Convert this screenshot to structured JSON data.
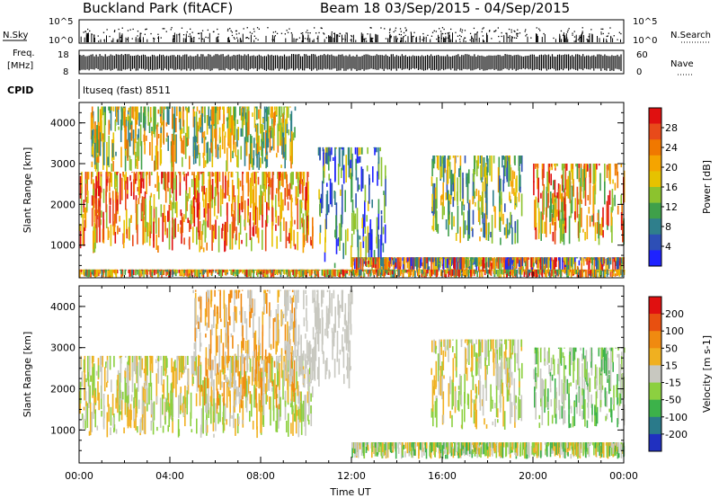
{
  "header": {
    "title_left": "Buckland Park (fitACF)",
    "title_right": "Beam 18  03/Sep/2015 - 04/Sep/2015"
  },
  "strips": {
    "nsky_label": "N.Sky",
    "nsearch_label": "N.Search",
    "freq_label": "Freq.",
    "freq_unit": "[MHz]",
    "nave_label": "Nave",
    "cpid_label": "CPID",
    "cpid_value": "ltuseq (fast) 8511",
    "nsky_ticks": [
      "10^5",
      "10^0"
    ],
    "nsearch_ticks": [
      "10^5",
      "10^0"
    ],
    "freq_ticks": [
      "18",
      "8"
    ],
    "nave_ticks": [
      "60",
      "0"
    ]
  },
  "chart_data": [
    {
      "type": "heatmap",
      "quantity": "Power",
      "ylabel": "Slant Range [km]",
      "xlabel": "Time UT",
      "ylim": [
        200,
        4500
      ],
      "y_ticks": [
        "1000",
        "2000",
        "3000",
        "4000"
      ],
      "x_ticks": [
        "00:00",
        "04:00",
        "08:00",
        "12:00",
        "16:00",
        "20:00",
        "00:00"
      ],
      "colorbar_label": "Power [dB]",
      "colorbar_ticks": [
        "28",
        "24",
        "20",
        "16",
        "12",
        "8",
        "4"
      ],
      "colors": [
        "#1e22ff",
        "#2d4fb6",
        "#2f7f8c",
        "#3fa04a",
        "#8cc32e",
        "#e6c200",
        "#f5a400",
        "#f07800",
        "#e84a1a",
        "#e01010"
      ],
      "regions": [
        {
          "t": [
            0.0,
            10.3
          ],
          "r": [
            800,
            2800
          ],
          "level_range": [
            4,
            9
          ]
        },
        {
          "t": [
            0.5,
            9.5
          ],
          "r": [
            2800,
            4400
          ],
          "level_range": [
            2,
            7
          ]
        },
        {
          "t": [
            10.5,
            13.5
          ],
          "r": [
            400,
            3400
          ],
          "level_range": [
            0,
            5
          ]
        },
        {
          "t": [
            12.0,
            24.0
          ],
          "r": [
            300,
            700
          ],
          "level_range": [
            0,
            9
          ]
        },
        {
          "t": [
            15.5,
            19.5
          ],
          "r": [
            1000,
            3200
          ],
          "level_range": [
            1,
            6
          ]
        },
        {
          "t": [
            20.0,
            24.0
          ],
          "r": [
            1000,
            3000
          ],
          "level_range": [
            3,
            9
          ]
        },
        {
          "t": [
            0.0,
            24.0
          ],
          "r": [
            200,
            400
          ],
          "level_range": [
            2,
            9
          ]
        }
      ]
    },
    {
      "type": "heatmap",
      "quantity": "Velocity",
      "ylabel": "Slant Range [km]",
      "xlabel": "Time UT",
      "ylim": [
        200,
        4500
      ],
      "y_ticks": [
        "1000",
        "2000",
        "3000",
        "4000"
      ],
      "x_ticks": [
        "00:00",
        "04:00",
        "08:00",
        "12:00",
        "16:00",
        "20:00",
        "00:00"
      ],
      "colorbar_label": "Velocity [m s-1]",
      "colorbar_ticks": [
        "200",
        "100",
        "50",
        "15",
        "-15",
        "-50",
        "-100",
        "-200"
      ],
      "colors": [
        "#2030c0",
        "#2a7a8a",
        "#3cb24a",
        "#8cd040",
        "#c8c8c0",
        "#f0b020",
        "#f08a10",
        "#e85010",
        "#e01010"
      ],
      "regions": [
        {
          "t": [
            0.0,
            10.3
          ],
          "r": [
            800,
            2800
          ],
          "level_range": [
            3,
            5
          ]
        },
        {
          "t": [
            5.0,
            9.5
          ],
          "r": [
            1500,
            4400
          ],
          "level_range": [
            4,
            6
          ]
        },
        {
          "t": [
            9.0,
            12.0
          ],
          "r": [
            2000,
            4400
          ],
          "level_range": [
            4,
            4
          ]
        },
        {
          "t": [
            12.0,
            24.0
          ],
          "r": [
            300,
            700
          ],
          "level_range": [
            2,
            5
          ]
        },
        {
          "t": [
            15.5,
            19.5
          ],
          "r": [
            1000,
            3200
          ],
          "level_range": [
            3,
            5
          ]
        },
        {
          "t": [
            20.0,
            24.0
          ],
          "r": [
            1000,
            3000
          ],
          "level_range": [
            2,
            4
          ]
        }
      ]
    }
  ]
}
